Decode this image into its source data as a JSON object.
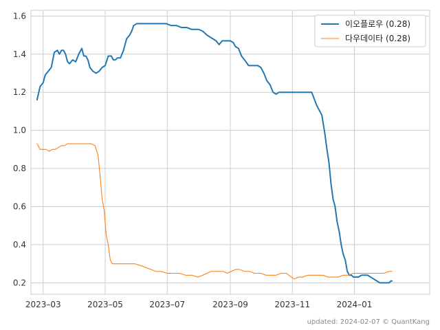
{
  "chart_data": {
    "type": "line",
    "title": "",
    "xlabel": "",
    "ylabel": "",
    "grid": true,
    "legend_position": "top-right",
    "x_range": [
      "2023-02-17",
      "2024-03-15"
    ],
    "ylim": [
      0.14,
      1.63
    ],
    "x_ticks": [
      {
        "date": "2023-03-01",
        "label": "2023–03"
      },
      {
        "date": "2023-05-01",
        "label": "2023–05"
      },
      {
        "date": "2023-07-01",
        "label": "2023–07"
      },
      {
        "date": "2023-09-01",
        "label": "2023–09"
      },
      {
        "date": "2023-11-01",
        "label": "2023–11"
      },
      {
        "date": "2024-01-01",
        "label": "2024–01"
      }
    ],
    "y_ticks": [
      {
        "value": 0.2,
        "label": "0.2"
      },
      {
        "value": 0.4,
        "label": "0.4"
      },
      {
        "value": 0.6,
        "label": "0.6"
      },
      {
        "value": 0.8,
        "label": "0.8"
      },
      {
        "value": 1.0,
        "label": "1.0"
      },
      {
        "value": 1.2,
        "label": "1.2"
      },
      {
        "value": 1.4,
        "label": "1.4"
      },
      {
        "value": 1.6,
        "label": "1.6"
      }
    ],
    "series": [
      {
        "name": "이오플로우 (0.28)",
        "color": "#1f77b4",
        "x": [
          "2023-02-23",
          "2023-02-26",
          "2023-03-01",
          "2023-03-03",
          "2023-03-06",
          "2023-03-09",
          "2023-03-12",
          "2023-03-15",
          "2023-03-17",
          "2023-03-19",
          "2023-03-21",
          "2023-03-23",
          "2023-03-25",
          "2023-03-27",
          "2023-03-30",
          "2023-04-02",
          "2023-04-05",
          "2023-04-08",
          "2023-04-10",
          "2023-04-12",
          "2023-04-14",
          "2023-04-16",
          "2023-04-19",
          "2023-04-22",
          "2023-04-25",
          "2023-04-28",
          "2023-05-01",
          "2023-05-04",
          "2023-05-07",
          "2023-05-09",
          "2023-05-11",
          "2023-05-13",
          "2023-05-16",
          "2023-05-19",
          "2023-05-22",
          "2023-05-25",
          "2023-05-27",
          "2023-05-29",
          "2023-06-01",
          "2023-06-04",
          "2023-06-07",
          "2023-06-09",
          "2023-06-12",
          "2023-06-15",
          "2023-06-18",
          "2023-06-21",
          "2023-06-24",
          "2023-06-27",
          "2023-06-30",
          "2023-07-05",
          "2023-07-10",
          "2023-07-15",
          "2023-07-20",
          "2023-07-25",
          "2023-07-28",
          "2023-08-01",
          "2023-08-05",
          "2023-08-09",
          "2023-08-12",
          "2023-08-15",
          "2023-08-18",
          "2023-08-21",
          "2023-08-24",
          "2023-08-26",
          "2023-08-29",
          "2023-09-01",
          "2023-09-04",
          "2023-09-06",
          "2023-09-09",
          "2023-09-12",
          "2023-09-15",
          "2023-09-19",
          "2023-09-22",
          "2023-09-25",
          "2023-09-28",
          "2023-10-01",
          "2023-10-04",
          "2023-10-07",
          "2023-10-10",
          "2023-10-13",
          "2023-10-16",
          "2023-10-19",
          "2023-10-22",
          "2023-10-25",
          "2023-10-28",
          "2023-10-31",
          "2023-11-04",
          "2023-11-10",
          "2023-11-15",
          "2023-11-20",
          "2023-11-25",
          "2023-11-30",
          "2023-12-03",
          "2023-12-05",
          "2023-12-07",
          "2023-12-09",
          "2023-12-11",
          "2023-12-13",
          "2023-12-15",
          "2023-12-17",
          "2023-12-19",
          "2023-12-21",
          "2023-12-23",
          "2023-12-25",
          "2023-12-27",
          "2023-12-29",
          "2023-12-31",
          "2024-01-02",
          "2024-01-05",
          "2024-01-08",
          "2024-01-11",
          "2024-01-14",
          "2024-01-17",
          "2024-01-20",
          "2024-01-23",
          "2024-01-26",
          "2024-01-29",
          "2024-02-01",
          "2024-02-04",
          "2024-02-06",
          "2024-02-07"
        ],
        "values": [
          1.16,
          1.23,
          1.25,
          1.29,
          1.31,
          1.33,
          1.41,
          1.42,
          1.4,
          1.42,
          1.42,
          1.4,
          1.36,
          1.35,
          1.37,
          1.36,
          1.4,
          1.43,
          1.39,
          1.39,
          1.37,
          1.33,
          1.31,
          1.3,
          1.31,
          1.33,
          1.34,
          1.39,
          1.39,
          1.37,
          1.37,
          1.38,
          1.38,
          1.42,
          1.48,
          1.5,
          1.52,
          1.55,
          1.56,
          1.56,
          1.56,
          1.56,
          1.56,
          1.56,
          1.56,
          1.56,
          1.56,
          1.56,
          1.56,
          1.55,
          1.55,
          1.54,
          1.54,
          1.53,
          1.53,
          1.53,
          1.52,
          1.5,
          1.49,
          1.48,
          1.47,
          1.45,
          1.47,
          1.47,
          1.47,
          1.47,
          1.46,
          1.44,
          1.43,
          1.39,
          1.37,
          1.34,
          1.34,
          1.34,
          1.34,
          1.33,
          1.3,
          1.26,
          1.24,
          1.2,
          1.19,
          1.2,
          1.2,
          1.2,
          1.2,
          1.2,
          1.2,
          1.2,
          1.2,
          1.2,
          1.13,
          1.08,
          0.98,
          0.9,
          0.83,
          0.72,
          0.64,
          0.6,
          0.52,
          0.47,
          0.4,
          0.35,
          0.32,
          0.26,
          0.24,
          0.24,
          0.23,
          0.23,
          0.23,
          0.24,
          0.24,
          0.24,
          0.23,
          0.22,
          0.21,
          0.2,
          0.2,
          0.2,
          0.2,
          0.21,
          0.21
        ]
      },
      {
        "name": "다우데이타 (0.28)",
        "color": "#ff7f0e",
        "x": [
          "2023-02-23",
          "2023-02-26",
          "2023-03-01",
          "2023-03-04",
          "2023-03-07",
          "2023-03-10",
          "2023-03-13",
          "2023-03-16",
          "2023-03-19",
          "2023-03-22",
          "2023-03-25",
          "2023-03-28",
          "2023-04-01",
          "2023-04-05",
          "2023-04-09",
          "2023-04-13",
          "2023-04-17",
          "2023-04-21",
          "2023-04-24",
          "2023-04-26",
          "2023-04-28",
          "2023-04-30",
          "2023-05-02",
          "2023-05-04",
          "2023-05-06",
          "2023-05-08",
          "2023-05-11",
          "2023-05-15",
          "2023-05-20",
          "2023-05-25",
          "2023-05-30",
          "2023-06-05",
          "2023-06-10",
          "2023-06-15",
          "2023-06-20",
          "2023-06-25",
          "2023-07-01",
          "2023-07-07",
          "2023-07-13",
          "2023-07-19",
          "2023-07-25",
          "2023-07-31",
          "2023-08-05",
          "2023-08-09",
          "2023-08-13",
          "2023-08-17",
          "2023-08-21",
          "2023-08-25",
          "2023-08-29",
          "2023-09-02",
          "2023-09-06",
          "2023-09-10",
          "2023-09-15",
          "2023-09-20",
          "2023-09-25",
          "2023-10-01",
          "2023-10-06",
          "2023-10-11",
          "2023-10-16",
          "2023-10-21",
          "2023-10-26",
          "2023-10-31",
          "2023-11-03",
          "2023-11-07",
          "2023-11-11",
          "2023-11-16",
          "2023-11-21",
          "2023-11-26",
          "2023-12-01",
          "2023-12-06",
          "2023-12-11",
          "2023-12-16",
          "2023-12-21",
          "2023-12-26",
          "2023-12-31",
          "2024-01-05",
          "2024-01-10",
          "2024-01-15",
          "2024-01-20",
          "2024-01-25",
          "2024-01-30",
          "2024-02-04",
          "2024-02-07"
        ],
        "values": [
          0.93,
          0.9,
          0.9,
          0.9,
          0.89,
          0.9,
          0.9,
          0.91,
          0.92,
          0.92,
          0.93,
          0.93,
          0.93,
          0.93,
          0.93,
          0.93,
          0.93,
          0.92,
          0.87,
          0.76,
          0.64,
          0.58,
          0.45,
          0.4,
          0.32,
          0.3,
          0.3,
          0.3,
          0.3,
          0.3,
          0.3,
          0.29,
          0.28,
          0.27,
          0.26,
          0.26,
          0.25,
          0.25,
          0.25,
          0.24,
          0.24,
          0.23,
          0.24,
          0.25,
          0.26,
          0.26,
          0.26,
          0.26,
          0.25,
          0.26,
          0.27,
          0.27,
          0.26,
          0.26,
          0.25,
          0.25,
          0.24,
          0.24,
          0.24,
          0.25,
          0.25,
          0.23,
          0.22,
          0.23,
          0.23,
          0.24,
          0.24,
          0.24,
          0.24,
          0.23,
          0.23,
          0.23,
          0.24,
          0.24,
          0.25,
          0.25,
          0.25,
          0.25,
          0.25,
          0.25,
          0.25,
          0.26,
          0.26
        ]
      }
    ]
  },
  "footer": {
    "credit": "updated: 2024-02-07 © QuantKang"
  }
}
